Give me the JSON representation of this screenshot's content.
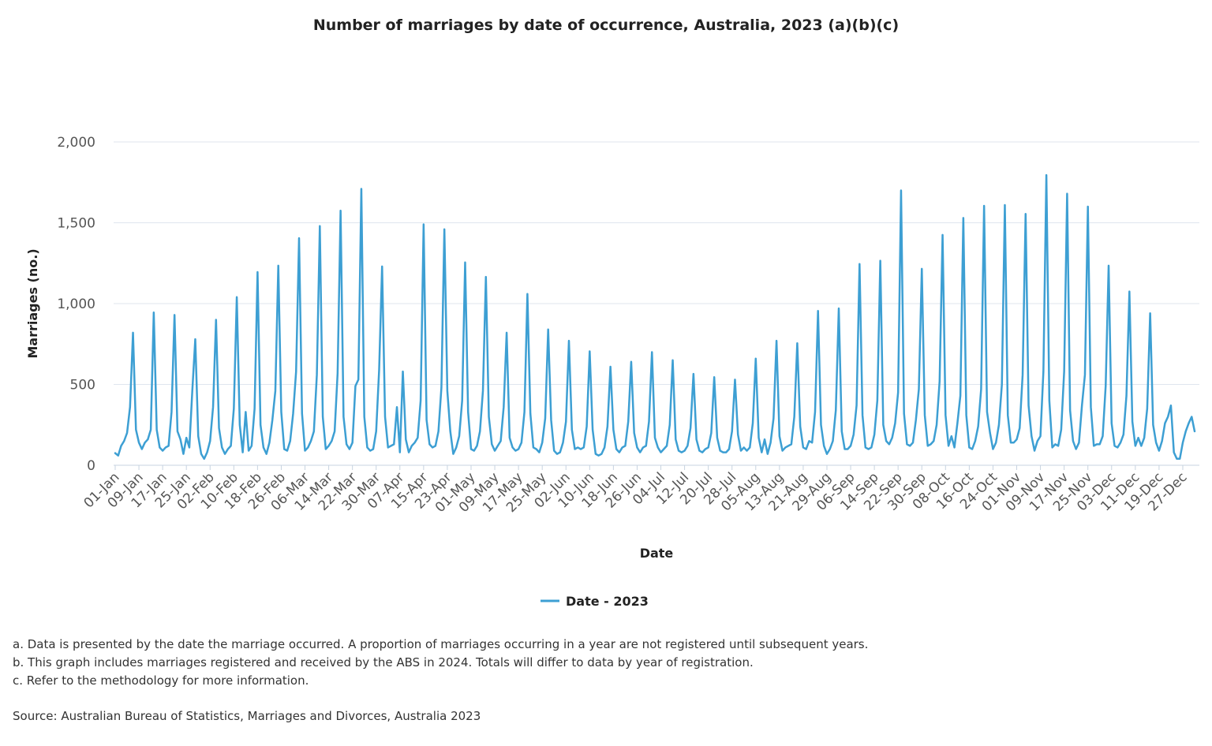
{
  "chart_data": {
    "type": "line",
    "title": "Number of marriages by date of occurrence, Australia, 2023 (a)(b)(c)",
    "xlabel": "Date",
    "ylabel": "Marriages (no.)",
    "ylim": [
      0,
      2000
    ],
    "yticks": [
      0,
      500,
      1000,
      1500,
      2000
    ],
    "ytick_labels": [
      "0",
      "500",
      "1,000",
      "1,500",
      "2,000"
    ],
    "xtick_labels": [
      "01-Jan",
      "09-Jan",
      "17-Jan",
      "25-Jan",
      "02-Feb",
      "10-Feb",
      "18-Feb",
      "26-Feb",
      "06-Mar",
      "14-Mar",
      "22-Mar",
      "30-Mar",
      "07-Apr",
      "15-Apr",
      "23-Apr",
      "01-May",
      "09-May",
      "17-May",
      "25-May",
      "02-Jun",
      "10-Jun",
      "18-Jun",
      "26-Jun",
      "04-Jul",
      "12-Jul",
      "20-Jul",
      "28-Jul",
      "05-Aug",
      "13-Aug",
      "21-Aug",
      "29-Aug",
      "06-Sep",
      "14-Sep",
      "22-Sep",
      "30-Sep",
      "08-Oct",
      "16-Oct",
      "24-Oct",
      "01-Nov",
      "09-Nov",
      "17-Nov",
      "25-Nov",
      "03-Dec",
      "11-Dec",
      "19-Dec",
      "27-Dec"
    ],
    "xtick_step_days": 8,
    "grid": true,
    "legend_position": "bottom",
    "series": [
      {
        "name": "Date - 2023",
        "color": "#3d9fd3",
        "start_date": "01-Jan",
        "values": [
          75,
          60,
          120,
          150,
          200,
          360,
          820,
          220,
          140,
          100,
          140,
          160,
          220,
          945,
          220,
          110,
          90,
          110,
          120,
          330,
          930,
          210,
          160,
          70,
          170,
          110,
          460,
          780,
          180,
          70,
          40,
          80,
          150,
          360,
          900,
          230,
          110,
          70,
          100,
          120,
          350,
          1040,
          250,
          80,
          330,
          90,
          120,
          350,
          1195,
          250,
          110,
          70,
          140,
          280,
          460,
          1235,
          330,
          100,
          90,
          150,
          320,
          580,
          1405,
          320,
          90,
          110,
          150,
          210,
          560,
          1480,
          300,
          100,
          120,
          150,
          210,
          570,
          1575,
          300,
          130,
          100,
          140,
          490,
          530,
          1710,
          300,
          110,
          90,
          100,
          210,
          590,
          1230,
          300,
          110,
          120,
          130,
          360,
          80,
          580,
          160,
          80,
          120,
          140,
          170,
          400,
          1490,
          280,
          130,
          110,
          120,
          210,
          480,
          1460,
          460,
          210,
          70,
          110,
          180,
          400,
          1255,
          330,
          100,
          90,
          120,
          210,
          460,
          1165,
          300,
          130,
          90,
          120,
          150,
          360,
          820,
          170,
          110,
          90,
          100,
          140,
          330,
          1060,
          320,
          110,
          100,
          80,
          140,
          290,
          840,
          280,
          90,
          70,
          80,
          140,
          270,
          770,
          220,
          100,
          110,
          100,
          110,
          240,
          705,
          220,
          70,
          60,
          70,
          110,
          240,
          610,
          220,
          100,
          80,
          110,
          120,
          270,
          640,
          200,
          110,
          80,
          110,
          120,
          270,
          700,
          170,
          110,
          80,
          100,
          120,
          250,
          650,
          160,
          90,
          80,
          90,
          120,
          230,
          565,
          160,
          90,
          80,
          100,
          110,
          200,
          545,
          170,
          90,
          80,
          80,
          100,
          210,
          530,
          190,
          90,
          110,
          90,
          110,
          260,
          660,
          170,
          80,
          160,
          70,
          140,
          290,
          770,
          180,
          90,
          110,
          120,
          130,
          300,
          755,
          240,
          110,
          100,
          150,
          140,
          330,
          955,
          250,
          120,
          70,
          100,
          150,
          340,
          970,
          210,
          100,
          100,
          120,
          190,
          370,
          1245,
          310,
          110,
          100,
          110,
          190,
          400,
          1265,
          250,
          150,
          130,
          170,
          260,
          450,
          1700,
          320,
          130,
          120,
          140,
          280,
          470,
          1215,
          310,
          120,
          130,
          150,
          250,
          520,
          1425,
          310,
          120,
          180,
          110,
          260,
          430,
          1530,
          310,
          110,
          100,
          150,
          240,
          470,
          1605,
          330,
          200,
          100,
          140,
          250,
          500,
          1610,
          310,
          140,
          140,
          160,
          230,
          560,
          1555,
          370,
          180,
          90,
          150,
          180,
          580,
          1795,
          400,
          110,
          130,
          120,
          220,
          580,
          1680,
          340,
          150,
          100,
          140,
          370,
          560,
          1600,
          360,
          120,
          130,
          130,
          180,
          490,
          1235,
          260,
          120,
          110,
          140,
          190,
          430,
          1075,
          270,
          120,
          170,
          120,
          170,
          350,
          940,
          250,
          140,
          90,
          150,
          260,
          300,
          370,
          80,
          40,
          40,
          140,
          210,
          260,
          300,
          210
        ]
      }
    ]
  },
  "legend": {
    "label": "Date - 2023"
  },
  "notes": [
    "a. Data is presented by the date the marriage occurred. A proportion of marriages occurring in a year are not registered until subsequent years.",
    "b. This graph includes marriages registered and received by the ABS in 2024. Totals will differ to data by year of registration.",
    "c. Refer to the methodology for more information."
  ],
  "source": "Source: Australian Bureau of Statistics, Marriages and Divorces, Australia 2023"
}
